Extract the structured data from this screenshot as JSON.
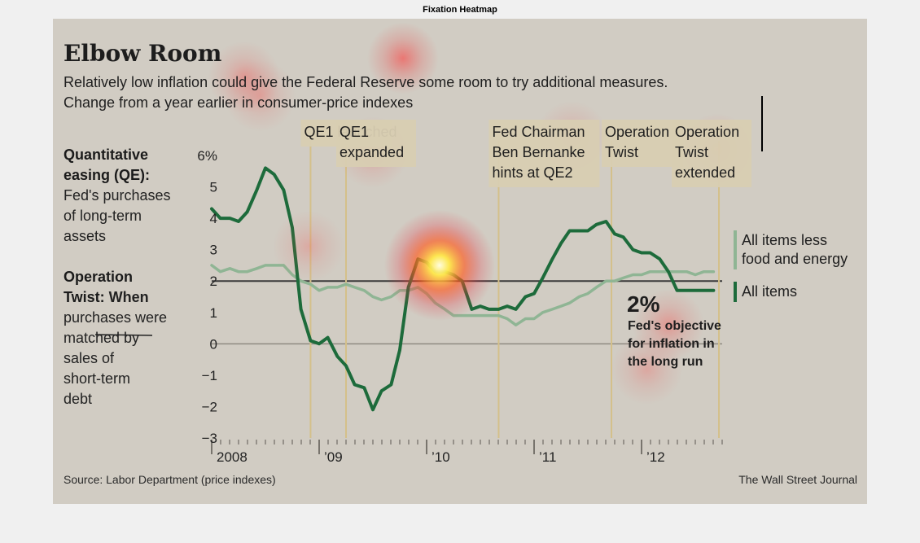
{
  "figure_title": "Fixation Heatmap",
  "chart_data": {
    "type": "line",
    "title": "Elbow Room",
    "subtitle": [
      "Relatively low inflation could give the Federal Reserve some room to try additional measures.",
      "Change from a year earlier in consumer-price indexes"
    ],
    "xlabel": "",
    "ylabel": "",
    "ylim": [
      -3,
      6
    ],
    "xlim": [
      2008.0,
      2012.75
    ],
    "y_ticks": [
      "6%",
      "5",
      "4",
      "3",
      "2",
      "1",
      "0",
      "−1",
      "−2",
      "−3"
    ],
    "x_ticks": [
      {
        "label": "2008",
        "x": 2008.0
      },
      {
        "label": "’09",
        "x": 2009.0
      },
      {
        "label": "’10",
        "x": 2010.0
      },
      {
        "label": "’11",
        "x": 2011.0
      },
      {
        "label": "’12",
        "x": 2012.0
      }
    ],
    "reference_lines": [
      {
        "y": 2
      },
      {
        "y": 0
      }
    ],
    "events": [
      {
        "x": 2008.92,
        "lines": [
          "QE1 launched"
        ]
      },
      {
        "x": 2009.25,
        "lines": [
          "QE1",
          "expanded"
        ]
      },
      {
        "x": 2010.67,
        "lines": [
          "Fed Chairman",
          "Ben Bernanke",
          "hints at QE2"
        ]
      },
      {
        "x": 2011.72,
        "lines": [
          "Operation",
          "Twist"
        ]
      },
      {
        "x": 2012.72,
        "lines": [
          "Operation",
          "Twist",
          "extended"
        ]
      }
    ],
    "series": [
      {
        "name": "All items less food and energy",
        "color": "#8fb594",
        "x": [
          2008.0,
          2008.08,
          2008.17,
          2008.25,
          2008.33,
          2008.42,
          2008.5,
          2008.58,
          2008.67,
          2008.75,
          2008.83,
          2008.92,
          2009.0,
          2009.08,
          2009.17,
          2009.25,
          2009.33,
          2009.42,
          2009.5,
          2009.58,
          2009.67,
          2009.75,
          2009.83,
          2009.92,
          2010.0,
          2010.08,
          2010.17,
          2010.25,
          2010.33,
          2010.42,
          2010.5,
          2010.58,
          2010.67,
          2010.75,
          2010.83,
          2010.92,
          2011.0,
          2011.08,
          2011.17,
          2011.25,
          2011.33,
          2011.42,
          2011.5,
          2011.58,
          2011.67,
          2011.75,
          2011.83,
          2011.92,
          2012.0,
          2012.08,
          2012.17,
          2012.25,
          2012.33,
          2012.42,
          2012.5,
          2012.58,
          2012.67
        ],
        "values": [
          2.5,
          2.3,
          2.4,
          2.3,
          2.3,
          2.4,
          2.5,
          2.5,
          2.5,
          2.2,
          2.0,
          1.9,
          1.7,
          1.8,
          1.8,
          1.9,
          1.8,
          1.7,
          1.5,
          1.4,
          1.5,
          1.7,
          1.7,
          1.8,
          1.6,
          1.3,
          1.1,
          0.9,
          0.9,
          0.9,
          0.9,
          0.9,
          0.9,
          0.8,
          0.6,
          0.8,
          0.8,
          1.0,
          1.1,
          1.2,
          1.3,
          1.5,
          1.6,
          1.8,
          2.0,
          2.0,
          2.1,
          2.2,
          2.2,
          2.3,
          2.3,
          2.3,
          2.3,
          2.3,
          2.2,
          2.3,
          2.3
        ]
      },
      {
        "name": "All items",
        "color": "#1d6b3b",
        "x": [
          2008.0,
          2008.08,
          2008.17,
          2008.25,
          2008.33,
          2008.42,
          2008.5,
          2008.58,
          2008.67,
          2008.75,
          2008.83,
          2008.92,
          2009.0,
          2009.08,
          2009.17,
          2009.25,
          2009.33,
          2009.42,
          2009.5,
          2009.58,
          2009.67,
          2009.75,
          2009.83,
          2009.92,
          2010.0,
          2010.08,
          2010.17,
          2010.25,
          2010.33,
          2010.42,
          2010.5,
          2010.58,
          2010.67,
          2010.75,
          2010.83,
          2010.92,
          2011.0,
          2011.08,
          2011.17,
          2011.25,
          2011.33,
          2011.42,
          2011.5,
          2011.58,
          2011.67,
          2011.75,
          2011.83,
          2011.92,
          2012.0,
          2012.08,
          2012.17,
          2012.25,
          2012.33,
          2012.42,
          2012.5,
          2012.58,
          2012.67
        ],
        "values": [
          4.3,
          4.0,
          4.0,
          3.9,
          4.2,
          4.9,
          5.6,
          5.4,
          4.9,
          3.7,
          1.1,
          0.1,
          0.0,
          0.2,
          -0.4,
          -0.7,
          -1.3,
          -1.4,
          -2.1,
          -1.5,
          -1.3,
          -0.2,
          1.8,
          2.7,
          2.6,
          2.3,
          2.3,
          2.2,
          2.0,
          1.1,
          1.2,
          1.1,
          1.1,
          1.2,
          1.1,
          1.5,
          1.6,
          2.1,
          2.7,
          3.2,
          3.6,
          3.6,
          3.6,
          3.8,
          3.9,
          3.5,
          3.4,
          3.0,
          2.9,
          2.9,
          2.7,
          2.3,
          1.7,
          1.7,
          1.7,
          1.7,
          1.7
        ]
      }
    ],
    "legend": [
      {
        "lines": [
          "All items less",
          "food and energy"
        ],
        "color": "#8fb594"
      },
      {
        "lines": [
          "All items"
        ],
        "color": "#1d6b3b"
      }
    ],
    "target_annotation": {
      "value": "2%",
      "lines": [
        "Fed's objective",
        "for inflation in",
        "the long run"
      ]
    },
    "side_notes": [
      {
        "head": [
          "Quantitative",
          "easing (QE):"
        ],
        "body": [
          "Fed's purchases",
          "of long-term",
          "assets"
        ]
      },
      {
        "head": [
          "Operation",
          "Twist:"
        ],
        "inline": "When",
        "body": [
          "purchases were",
          "matched by",
          "sales of",
          "short-term",
          "debt"
        ]
      }
    ],
    "source": "Source: Labor Department (price indexes)",
    "credit": "The Wall Street Journal",
    "heatmap_spots": [
      {
        "x": 2010.12,
        "y": 2.5,
        "intensity": 1.0
      },
      {
        "x": 2009.78,
        "y": 9.1,
        "intensity": 0.45
      },
      {
        "x": 2008.3,
        "y": 8.5,
        "intensity": 0.25
      },
      {
        "x": 2008.45,
        "y": 7.9,
        "intensity": 0.2
      },
      {
        "x": 2009.5,
        "y": 6.1,
        "intensity": 0.22
      },
      {
        "x": 2012.7,
        "y": 6.2,
        "intensity": 0.22
      },
      {
        "x": 2012.25,
        "y": 0.6,
        "intensity": 0.28
      },
      {
        "x": 2012.05,
        "y": -0.8,
        "intensity": 0.2
      },
      {
        "x": 2008.9,
        "y": 3.1,
        "intensity": 0.18
      },
      {
        "x": 2011.35,
        "y": 6.6,
        "intensity": 0.18
      }
    ]
  }
}
